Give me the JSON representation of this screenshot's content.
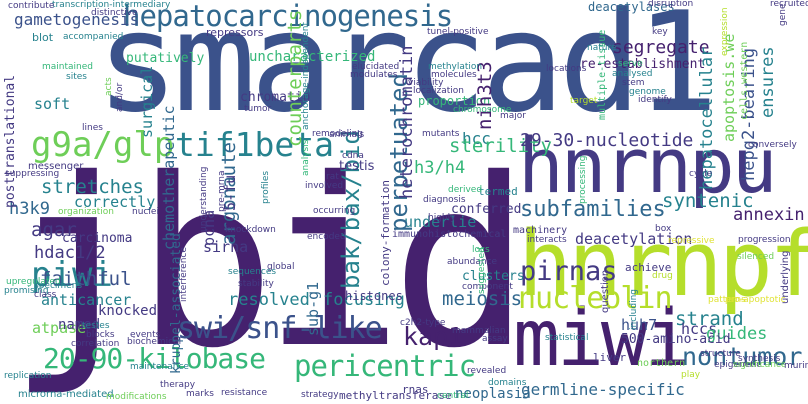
{
  "palette": {
    "dark_purple": "#45216e",
    "indigo": "#443a83",
    "blue": "#3b528b",
    "steel": "#31688e",
    "teal": "#26828e",
    "sea": "#1f9e89",
    "green": "#35b779",
    "lime": "#6ece58",
    "yellow_green": "#b5de2b",
    "yellow": "#e0e336",
    "pale": "#c6e048"
  },
  "words": {
    "smarcad1": "smarcad1",
    "jbid": "jbid",
    "hnrnpf": "hnrnpf",
    "hnrnpu": "hnrnpu",
    "miwi": "miwi",
    "hepatocarcinogenesis": "hepatocarcinogenesis",
    "g9a_glp": "g9a/glp",
    "piwi": "piwi",
    "tif1beta": "tif1beta",
    "swi_snf_like": "swi/snf-like",
    "pericentric": "pericentric",
    "kilobase": "20-90-kilobase",
    "nucleolin": "nucleolin",
    "pirnas": "pirnas",
    "kap1": "kap1",
    "nontumor": "nontumor",
    "gametogenesis": "gametogenesis",
    "segregate": "segregate",
    "uncharacterized": "uncharacterized",
    "re_establishment": "re-establishment",
    "deacetylases": "deacetylases",
    "hepg2_bearing": "hepg2-bearing",
    "hepatocellular": "hepatocellular",
    "apoptosis_we": "apoptosis.we",
    "ensures": "ensures",
    "nih3t3": "nih3t3",
    "perpetuated": "perpetuated",
    "heterochromatin": "heterochromatin",
    "argonaute": "argonaute",
    "bak_bax_bid": "bak/bax/bid",
    "counterparts": "counterparts",
    "chromatin": "chromatin",
    "hcc": "hcc",
    "h3_h4": "h3/h4",
    "sterility": "sterility",
    "nucleotide": "29-30-nucleotide",
    "subfamilies": "subfamilies",
    "syntenic": "syntenic",
    "annexin": "annexin",
    "deacetylation": "deacetylation",
    "stretches": "stretches",
    "h3k9": "h3k9",
    "agar": "agar",
    "hdac1_2": "hdac1/2",
    "faithful": "faithful",
    "anticancer": "anticancer",
    "carcinoma": "carcinoma",
    "atpase": "atpase",
    "named": "named",
    "knocked": "knocked",
    "resolved": "resolved",
    "focusing": "focusing",
    "meiosis": "meiosis",
    "huh7": "huh7",
    "strand": "strand",
    "hccs": "hccs",
    "guides": "guides",
    "amino_acid": "500-amino-acid",
    "germline_specific": "germline-specific",
    "neoplasia": "neoplasia",
    "methyltransferase": "methyltransferase",
    "histones": "histones",
    "clusters": "clusters",
    "sirna": "sirna",
    "sub_g1": "sub-g1",
    "pcna": "pcna",
    "five_fu": "5-fu",
    "soft": "soft",
    "putatively": "putatively",
    "correctly": "correctly",
    "underlie": "underlie",
    "conferred": "conferred",
    "termed": "termed",
    "proportion": "proportion",
    "machinery": "machinery",
    "achieve": "achieve",
    "liver": "liver",
    "rnas": "rnas",
    "northern": "northern",
    "surgical": "surgical",
    "chemotherapeutic": "chemotherapeutic",
    "kruppel": "kruppel-associated",
    "posttranslational": "posttranslational",
    "colony_formation": "colony-formation",
    "immunohistochemical": "immunohistochemical",
    "transcription_intermediary": "transcription-intermediary",
    "distinctive": "distinctive",
    "contribute": "contribute",
    "blot": "blot",
    "accompanied": "accompanied",
    "repressors": "repressors",
    "tunel_positive": "tunel-positive",
    "disruption": "disruption",
    "recruited": "recruited",
    "key": "key",
    "maintained": "maintained",
    "sites": "sites",
    "elucidated": "elucidated",
    "modulates": "modulates",
    "methylation": "methylation",
    "molecules": "molecules",
    "viability": "viability",
    "localization": "localization",
    "locations": "locations",
    "nature": "nature",
    "serve": "serve",
    "analysed": "analysed",
    "stem": "stem",
    "genome": "genome",
    "identify": "identify",
    "messenger": "messenger",
    "suppressing": "suppressing",
    "lines": "lines",
    "tumor": "tumor",
    "remodeling": "remodeling",
    "anchorage_independent": "anchorage-independent",
    "animals": "animals",
    "cdna": "cdna",
    "mutants": "mutants",
    "chromosome": "chromosome",
    "major": "major",
    "target": "target",
    "multiple_tissue": "multiple-tissue",
    "cells_western": "cells.western",
    "conversely": "conversely",
    "cycle": "cycle",
    "testis": "testis",
    "rat": "rat",
    "involved": "involved",
    "occurring": "occurring",
    "encoded": "encoded",
    "derived": "derived",
    "diagnosis": "diagnosis",
    "highly": "highly",
    "interacts": "interacts",
    "box": "box",
    "repressive": "repressive",
    "silenced": "silenced",
    "progression": "progression",
    "organization": "organization",
    "nuclei": "nuclei",
    "knockdown": "knockdown",
    "interference": "interference",
    "global": "global",
    "sequences": "sequences",
    "stability": "stability",
    "abundance": "abundance",
    "component": "component",
    "suggested": "suggested",
    "locs": "locs",
    "including": "including",
    "drug": "drug",
    "pro_apoptotic": "pro-apoptotic",
    "underlying": "underlying",
    "upregulated": "upregulated",
    "promising": "promising",
    "specimens": "specimens",
    "class": "class",
    "testes": "testes",
    "blocks": "blocks",
    "correlation": "correlation",
    "biochemical": "biochemical",
    "events": "events",
    "c2h2_type": "c2h2-type",
    "mammalian": "mammalian",
    "assay": "assay",
    "statistical": "statistical",
    "replication": "replication",
    "microrna_mediated": "microrna-mediated",
    "maintenance": "maintenance",
    "modifications": "modifications",
    "therapy": "therapy",
    "marks": "marks",
    "resistance": "resistance",
    "strategy": "strategy",
    "revealed": "revealed",
    "domains": "domains",
    "central": "central",
    "question": "question",
    "patterns": "patterns",
    "structure": "structure",
    "epigenetic": "epigenetic",
    "significance": "significance",
    "play": "play",
    "murine": "murine",
    "acts": "acts",
    "and_or": "and/or",
    "understanding": "understanding",
    "analysis": "analysis",
    "profiles": "profiles",
    "expression": "expression",
    "synthesis": "synthesis",
    "pre_mrna": "pre-mrna",
    "processing": "processing",
    "gene": "gene"
  }
}
